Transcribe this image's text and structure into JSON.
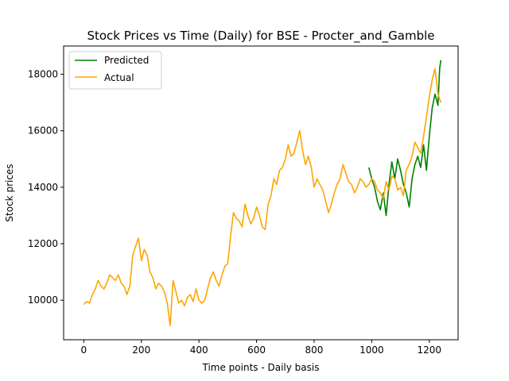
{
  "chart_data": {
    "type": "line",
    "title": "Stock Prices vs Time (Daily) for BSE - Procter_and_Gamble",
    "xlabel": "Time points - Daily basis",
    "ylabel": "Stock prices",
    "xlim": [
      -70,
      1300
    ],
    "ylim": [
      8600,
      19000
    ],
    "xticks": [
      0,
      200,
      400,
      600,
      800,
      1000,
      1200
    ],
    "yticks": [
      10000,
      12000,
      14000,
      16000,
      18000
    ],
    "grid": false,
    "legend_position": "top-left",
    "series": [
      {
        "name": "Predicted",
        "color": "#008000",
        "x": [
          990,
          1000,
          1010,
          1020,
          1030,
          1040,
          1050,
          1060,
          1070,
          1080,
          1090,
          1100,
          1110,
          1120,
          1130,
          1140,
          1150,
          1160,
          1170,
          1180,
          1190,
          1200,
          1210,
          1220,
          1230,
          1236,
          1240
        ],
        "y": [
          14700,
          14300,
          14000,
          13500,
          13200,
          13800,
          13000,
          14100,
          14900,
          14300,
          15000,
          14600,
          14100,
          13800,
          13300,
          14300,
          14800,
          15100,
          14700,
          15500,
          14600,
          15800,
          16800,
          17300,
          16900,
          18200,
          18500
        ]
      },
      {
        "name": "Actual",
        "color": "#ffa500",
        "x": [
          0,
          10,
          20,
          30,
          40,
          50,
          60,
          70,
          80,
          90,
          100,
          110,
          120,
          130,
          140,
          150,
          160,
          170,
          180,
          190,
          200,
          210,
          220,
          230,
          240,
          250,
          260,
          270,
          280,
          290,
          300,
          310,
          320,
          330,
          340,
          350,
          360,
          370,
          380,
          390,
          400,
          410,
          420,
          430,
          440,
          450,
          460,
          470,
          480,
          490,
          500,
          510,
          520,
          530,
          540,
          550,
          560,
          570,
          580,
          590,
          600,
          610,
          620,
          630,
          640,
          650,
          660,
          670,
          680,
          690,
          700,
          710,
          720,
          730,
          740,
          750,
          760,
          770,
          780,
          790,
          800,
          810,
          820,
          830,
          840,
          850,
          860,
          870,
          880,
          890,
          900,
          910,
          920,
          930,
          940,
          950,
          960,
          970,
          980,
          990,
          1000,
          1010,
          1020,
          1030,
          1040,
          1050,
          1060,
          1070,
          1080,
          1090,
          1100,
          1110,
          1120,
          1130,
          1140,
          1150,
          1160,
          1170,
          1180,
          1190,
          1200,
          1210,
          1220,
          1230,
          1240
        ],
        "y": [
          9850,
          9950,
          9900,
          10200,
          10400,
          10700,
          10500,
          10400,
          10600,
          10900,
          10800,
          10700,
          10900,
          10600,
          10500,
          10200,
          10500,
          11600,
          11900,
          12200,
          11400,
          11800,
          11600,
          11000,
          10800,
          10400,
          10600,
          10500,
          10300,
          9900,
          9100,
          10700,
          10300,
          9900,
          10000,
          9800,
          10100,
          10200,
          9950,
          10400,
          10000,
          9900,
          10000,
          10400,
          10800,
          11000,
          10700,
          10500,
          10900,
          11200,
          11300,
          12300,
          13100,
          12900,
          12800,
          12600,
          13400,
          13000,
          12700,
          12900,
          13300,
          13000,
          12600,
          12500,
          13400,
          13700,
          14300,
          14100,
          14600,
          14700,
          15000,
          15500,
          15100,
          15200,
          15600,
          16000,
          15300,
          14800,
          15100,
          14700,
          14000,
          14300,
          14100,
          13900,
          13500,
          13100,
          13400,
          13800,
          14100,
          14300,
          14800,
          14500,
          14200,
          14100,
          13800,
          14000,
          14300,
          14200,
          14000,
          14100,
          14300,
          14200,
          13900,
          13800,
          13600,
          14200,
          13900,
          14400,
          14300,
          13900,
          14000,
          13700,
          14600,
          14800,
          15100,
          15600,
          15400,
          15200,
          15800,
          16500,
          17200,
          17800,
          18200,
          17300,
          17000
        ]
      }
    ]
  }
}
